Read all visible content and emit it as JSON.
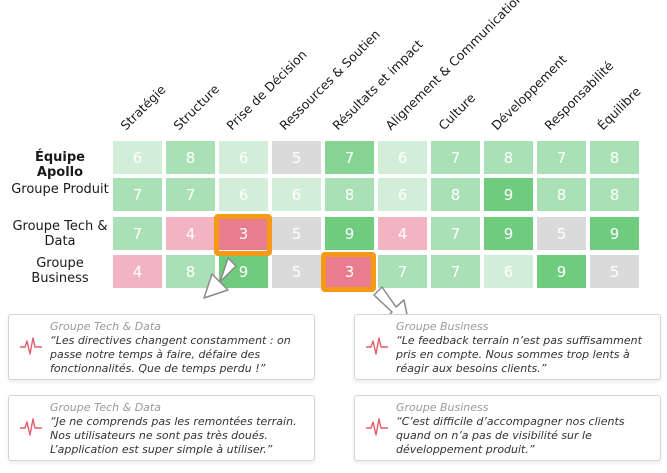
{
  "colors": {
    "very_light_green": "#d2eed8",
    "light_green": "#a9e0b5",
    "mid_green": "#86d494",
    "dark_green": "#6fcb7e",
    "grey": "#dadada",
    "light_pink": "#f1b4c0",
    "pink": "#ea7c90",
    "highlight_orange": "#f59a16",
    "wave_red": "#e35d6a"
  },
  "matrix": {
    "columns": [
      "Stratégie",
      "Structure",
      "Prise de Décision",
      "Ressources & Soutien",
      "Résultats et impact",
      "Alignement & Communication",
      "Culture",
      "Développement",
      "Responsabilité",
      "Équilibre"
    ],
    "rows": [
      {
        "label": "Équipe Apollo",
        "bold": true,
        "cells": [
          {
            "value": "6",
            "color": "#d2eed8"
          },
          {
            "value": "8",
            "color": "#a9e0b5"
          },
          {
            "value": "6",
            "color": "#d2eed8"
          },
          {
            "value": "5",
            "color": "#dadada"
          },
          {
            "value": "7",
            "color": "#86d494"
          },
          {
            "value": "6",
            "color": "#d2eed8"
          },
          {
            "value": "7",
            "color": "#a9e0b5"
          },
          {
            "value": "8",
            "color": "#a9e0b5"
          },
          {
            "value": "7",
            "color": "#a9e0b5"
          },
          {
            "value": "8",
            "color": "#a9e0b5"
          }
        ]
      },
      {
        "label": "Groupe Produit",
        "bold": false,
        "cells": [
          {
            "value": "7",
            "color": "#a9e0b5"
          },
          {
            "value": "7",
            "color": "#a9e0b5"
          },
          {
            "value": "6",
            "color": "#d2eed8"
          },
          {
            "value": "6",
            "color": "#d2eed8"
          },
          {
            "value": "8",
            "color": "#a9e0b5"
          },
          {
            "value": "6",
            "color": "#d2eed8"
          },
          {
            "value": "8",
            "color": "#a9e0b5"
          },
          {
            "value": "9",
            "color": "#6fcb7e"
          },
          {
            "value": "8",
            "color": "#a9e0b5"
          },
          {
            "value": "8",
            "color": "#a9e0b5"
          }
        ]
      },
      {
        "label": "Groupe Tech & Data",
        "bold": false,
        "cells": [
          {
            "value": "7",
            "color": "#a9e0b5"
          },
          {
            "value": "4",
            "color": "#f1b4c0"
          },
          {
            "value": "3",
            "color": "#ea7c90"
          },
          {
            "value": "5",
            "color": "#dadada"
          },
          {
            "value": "9",
            "color": "#6fcb7e"
          },
          {
            "value": "4",
            "color": "#f1b4c0"
          },
          {
            "value": "7",
            "color": "#a9e0b5"
          },
          {
            "value": "9",
            "color": "#6fcb7e"
          },
          {
            "value": "5",
            "color": "#dadada"
          },
          {
            "value": "9",
            "color": "#6fcb7e"
          }
        ]
      },
      {
        "label": "Groupe Business",
        "bold": false,
        "cells": [
          {
            "value": "4",
            "color": "#f1b4c0"
          },
          {
            "value": "8",
            "color": "#a9e0b5"
          },
          {
            "value": "9",
            "color": "#6fcb7e"
          },
          {
            "value": "5",
            "color": "#dadada"
          },
          {
            "value": "3",
            "color": "#ea7c90"
          },
          {
            "value": "7",
            "color": "#a9e0b5"
          },
          {
            "value": "7",
            "color": "#a9e0b5"
          },
          {
            "value": "6",
            "color": "#d2eed8"
          },
          {
            "value": "9",
            "color": "#6fcb7e"
          },
          {
            "value": "5",
            "color": "#dadada"
          }
        ]
      }
    ]
  },
  "cards": [
    {
      "group": "Groupe Tech & Data",
      "quote": "“Les directives changent constamment : on passe notre temps à faire, défaire des fonctionnalités. Que de temps perdu !”",
      "icon": "heartbeat-icon"
    },
    {
      "group": "Groupe Business",
      "quote": "“Le feedback terrain n’est pas suffisamment pris en compte. Nous sommes trop lents à réagir aux besoins clients.”",
      "icon": "heartbeat-icon"
    },
    {
      "group": "Groupe Tech & Data",
      "quote": "“Je ne comprends pas les remontées terrain. Nos utilisateurs ne sont pas très doués. L’application est super simple à utiliser.”",
      "icon": "heartbeat-icon"
    },
    {
      "group": "Groupe Business",
      "quote": "“C’est difficile d’accompagner nos clients quand on n’a pas de visibilité sur le développement produit.”",
      "icon": "heartbeat-icon"
    }
  ]
}
